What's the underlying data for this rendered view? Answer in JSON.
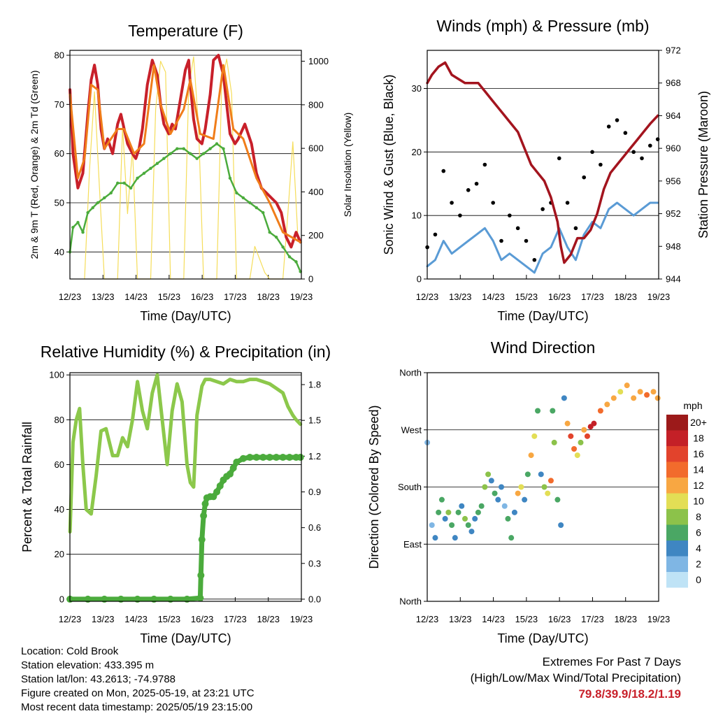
{
  "colors": {
    "temp2m": "#c8202a",
    "temp9m": "#f07d1a",
    "dewpoint": "#4bab3c",
    "solar": "#f5dd5a",
    "gust": "#000000",
    "wind": "#5a9bd5",
    "pressure": "#a3141e",
    "rh": "#8cc84b",
    "precip": "#4bab3c",
    "extremes": "#c8202a"
  },
  "chart_data": [
    {
      "id": "temperature",
      "type": "line",
      "title": "Temperature (F)",
      "xlabel": "Time (Day/UTC)",
      "ylabel": "2m & 9m T (Red, Orange) & 2m Td (Green)",
      "y2label": "Solar Insolation (Yellow)",
      "xticks": [
        "12/23",
        "13/23",
        "14/23",
        "15/23",
        "16/23",
        "17/23",
        "18/23",
        "19/23"
      ],
      "xlim": [
        12.958,
        19.958
      ],
      "ylim": [
        34.5,
        81
      ],
      "yticks": [
        40,
        50,
        60,
        70,
        80
      ],
      "y2lim": [
        0,
        1050
      ],
      "y2ticks": [
        0,
        200,
        400,
        600,
        800,
        1000
      ],
      "series": [
        {
          "key": "temp2m",
          "x": [
            12.96,
            13.05,
            13.2,
            13.35,
            13.5,
            13.6,
            13.7,
            13.8,
            13.9,
            14.0,
            14.1,
            14.25,
            14.4,
            14.5,
            14.6,
            14.7,
            14.85,
            14.95,
            15.05,
            15.15,
            15.3,
            15.45,
            15.6,
            15.7,
            15.8,
            15.95,
            16.05,
            16.15,
            16.3,
            16.45,
            16.55,
            16.6,
            16.7,
            16.8,
            16.95,
            17.05,
            17.2,
            17.3,
            17.45,
            17.6,
            17.7,
            17.8,
            17.95,
            18.05,
            18.25,
            18.45,
            18.6,
            18.75,
            18.9,
            19.05,
            19.2,
            19.35,
            19.5,
            19.65,
            19.8,
            19.93
          ],
          "y": [
            73,
            60,
            53,
            56,
            68,
            75,
            78,
            74,
            65,
            61,
            63,
            60,
            66,
            68,
            65,
            62,
            60,
            59,
            61,
            65,
            74,
            79,
            76,
            70,
            66,
            64,
            66,
            65,
            71,
            77,
            79,
            74,
            67,
            63,
            62,
            65,
            72,
            79,
            80,
            76,
            70,
            64,
            62,
            63,
            66,
            62,
            56,
            53,
            52,
            51,
            50,
            48,
            43,
            41,
            44,
            42
          ]
        },
        {
          "key": "temp9m",
          "x": [
            12.96,
            13.2,
            13.4,
            13.6,
            13.8,
            14.0,
            14.4,
            14.6,
            14.9,
            15.2,
            15.5,
            15.7,
            16.0,
            16.4,
            16.6,
            16.9,
            17.3,
            17.6,
            17.9,
            18.2,
            18.6,
            19.0,
            19.4,
            19.93
          ],
          "y": [
            72,
            55,
            59,
            74,
            73,
            61,
            65,
            65,
            60,
            62,
            78,
            70,
            64,
            69,
            75,
            64,
            63,
            78,
            65,
            63,
            55,
            50,
            44,
            42
          ]
        },
        {
          "key": "dewpoint",
          "x": [
            12.96,
            13.05,
            13.2,
            13.35,
            13.5,
            13.65,
            13.8,
            14.0,
            14.2,
            14.4,
            14.6,
            14.8,
            15.0,
            15.2,
            15.4,
            15.6,
            15.8,
            16.0,
            16.2,
            16.4,
            16.6,
            16.8,
            17.0,
            17.2,
            17.4,
            17.6,
            17.8,
            18.0,
            18.2,
            18.4,
            18.6,
            18.8,
            19.0,
            19.2,
            19.4,
            19.6,
            19.8,
            19.93
          ],
          "y": [
            40,
            45,
            46,
            44,
            48,
            49,
            50,
            51,
            52,
            54,
            54,
            53,
            55,
            56,
            57,
            58,
            59,
            60,
            61,
            61,
            60,
            59,
            60,
            61,
            62,
            61,
            55,
            52,
            51,
            50,
            49,
            48,
            44,
            43,
            41,
            39,
            38,
            36
          ]
        }
      ],
      "y2_series": [
        {
          "key": "solar",
          "x": [
            13.4,
            13.55,
            13.7,
            13.85,
            14.0,
            14.4,
            14.55,
            14.7,
            14.85,
            15.0,
            15.4,
            15.55,
            15.7,
            15.85,
            16.0,
            16.4,
            16.55,
            16.7,
            16.85,
            17.0,
            17.4,
            17.55,
            17.7,
            17.85,
            18.0,
            18.4,
            18.55,
            18.7,
            18.85,
            19.0,
            19.4,
            19.55,
            19.7,
            19.85
          ],
          "y": [
            0,
            500,
            860,
            420,
            0,
            0,
            700,
            300,
            600,
            0,
            0,
            780,
            1000,
            950,
            0,
            0,
            880,
            1020,
            700,
            0,
            0,
            900,
            1010,
            850,
            0,
            0,
            150,
            90,
            30,
            0,
            0,
            300,
            630,
            200
          ]
        }
      ]
    },
    {
      "id": "winds",
      "type": "scatter",
      "title": "Winds (mph) & Pressure (mb)",
      "xlabel": "Time (Day/UTC)",
      "ylabel": "Sonic Wind & Gust (Blue, Black)",
      "y2label": "Station Pressure (Maroon)",
      "xticks": [
        "12/23",
        "13/23",
        "14/23",
        "15/23",
        "16/23",
        "17/23",
        "18/23",
        "19/23"
      ],
      "xlim": [
        12.958,
        19.958
      ],
      "ylim": [
        0,
        36
      ],
      "yticks": [
        0,
        10,
        20,
        30
      ],
      "y2lim": [
        944,
        972
      ],
      "y2ticks": [
        944,
        948,
        952,
        956,
        960,
        964,
        968,
        972
      ],
      "series": [
        {
          "key": "gust",
          "x": [
            12.96,
            13.2,
            13.45,
            13.7,
            13.95,
            14.2,
            14.45,
            14.7,
            14.95,
            15.2,
            15.45,
            15.7,
            15.95,
            16.2,
            16.45,
            16.7,
            16.95,
            17.2,
            17.45,
            17.7,
            17.95,
            18.2,
            18.45,
            18.7,
            18.95,
            19.2,
            19.45,
            19.7,
            19.93
          ],
          "y": [
            5,
            7,
            17,
            12,
            10,
            14,
            15,
            18,
            12,
            6,
            10,
            8,
            6,
            3,
            11,
            12,
            19,
            12,
            8,
            16,
            20,
            18,
            24,
            25,
            23,
            20,
            19,
            21,
            22
          ]
        },
        {
          "key": "wind",
          "x": [
            12.96,
            13.2,
            13.45,
            13.7,
            13.95,
            14.2,
            14.45,
            14.7,
            14.95,
            15.2,
            15.45,
            15.7,
            15.95,
            16.2,
            16.45,
            16.7,
            16.95,
            17.2,
            17.45,
            17.7,
            17.95,
            18.2,
            18.45,
            18.7,
            18.95,
            19.2,
            19.45,
            19.7,
            19.93
          ],
          "y": [
            2,
            3,
            6,
            4,
            5,
            6,
            7,
            8,
            6,
            3,
            4,
            3,
            2,
            1,
            4,
            5,
            8,
            5,
            3,
            7,
            9,
            8,
            11,
            12,
            11,
            10,
            11,
            12,
            12
          ]
        }
      ],
      "y2_series": [
        {
          "key": "pressure",
          "x": [
            12.96,
            13.1,
            13.3,
            13.5,
            13.7,
            13.9,
            14.1,
            14.3,
            14.5,
            14.7,
            14.9,
            15.1,
            15.3,
            15.5,
            15.7,
            15.9,
            16.1,
            16.3,
            16.5,
            16.7,
            16.9,
            17.0,
            17.1,
            17.3,
            17.5,
            17.7,
            17.9,
            18.1,
            18.3,
            18.5,
            18.7,
            18.9,
            19.1,
            19.3,
            19.5,
            19.7,
            19.93
          ],
          "y": [
            968,
            969,
            970,
            970.5,
            969,
            968.5,
            968,
            968,
            968,
            967,
            966,
            965,
            964,
            963,
            962,
            960,
            958,
            957,
            956,
            954,
            951,
            948,
            946,
            947,
            949,
            949,
            950,
            952,
            955,
            957,
            958,
            959,
            960,
            961,
            962,
            963,
            964
          ]
        }
      ]
    },
    {
      "id": "humidity",
      "type": "line",
      "title": "Relative Humidity (%) & Precipitation (in)",
      "xlabel": "Time (Day/UTC)",
      "ylabel": "Percent & Total Rainfall",
      "xticks": [
        "12/23",
        "13/23",
        "14/23",
        "15/23",
        "16/23",
        "17/23",
        "18/23",
        "19/23"
      ],
      "xlim": [
        12.958,
        19.958
      ],
      "ylim": [
        -1,
        101
      ],
      "yticks": [
        0,
        20,
        40,
        60,
        80,
        100
      ],
      "y2lim": [
        -0.018,
        1.9
      ],
      "y2ticks": [
        "0.0",
        "0.3",
        "0.6",
        "0.9",
        "1.2",
        "1.5",
        "1.8"
      ],
      "series": [
        {
          "key": "rh",
          "x": [
            12.96,
            13.05,
            13.15,
            13.25,
            13.35,
            13.45,
            13.6,
            13.75,
            13.9,
            14.05,
            14.25,
            14.4,
            14.55,
            14.7,
            14.85,
            15.0,
            15.15,
            15.3,
            15.45,
            15.6,
            15.75,
            15.9,
            16.05,
            16.2,
            16.35,
            16.5,
            16.6,
            16.7,
            16.8,
            16.95,
            17.05,
            17.2,
            17.4,
            17.6,
            17.8,
            18.0,
            18.2,
            18.4,
            18.6,
            18.8,
            19.0,
            19.2,
            19.4,
            19.55,
            19.7,
            19.8,
            19.93
          ],
          "y": [
            30,
            70,
            80,
            85,
            60,
            40,
            38,
            55,
            75,
            76,
            64,
            64,
            72,
            68,
            80,
            97,
            84,
            76,
            92,
            100,
            80,
            60,
            84,
            96,
            88,
            60,
            52,
            50,
            82,
            95,
            98,
            98,
            97,
            96,
            98,
            97,
            97,
            98,
            98,
            97,
            96,
            94,
            92,
            86,
            82,
            80,
            78
          ]
        }
      ],
      "y2_series": [
        {
          "key": "precip",
          "x": [
            12.96,
            13.5,
            14.0,
            14.5,
            15.0,
            15.5,
            16.0,
            16.5,
            16.9,
            16.92,
            16.95,
            17.0,
            17.05,
            17.1,
            17.2,
            17.3,
            17.4,
            17.5,
            17.6,
            17.7,
            17.8,
            17.9,
            18.0,
            18.2,
            18.4,
            18.6,
            18.8,
            19.0,
            19.2,
            19.4,
            19.6,
            19.8,
            19.93
          ],
          "y": [
            0,
            0,
            0,
            0,
            0,
            0,
            0,
            0,
            0.01,
            0.2,
            0.5,
            0.7,
            0.8,
            0.85,
            0.86,
            0.86,
            0.9,
            0.95,
            1.0,
            1.03,
            1.05,
            1.1,
            1.15,
            1.18,
            1.19,
            1.19,
            1.19,
            1.19,
            1.19,
            1.19,
            1.19,
            1.19,
            1.19
          ]
        }
      ]
    },
    {
      "id": "direction",
      "type": "scatter",
      "title": "Wind Direction",
      "xlabel": "Time (Day/UTC)",
      "ylabel": "Direction (Colored By Speed)",
      "xticks": [
        "12/23",
        "13/23",
        "14/23",
        "15/23",
        "16/23",
        "17/23",
        "18/23",
        "19/23"
      ],
      "xlim": [
        12.958,
        19.958
      ],
      "ylim": [
        0,
        360
      ],
      "yticks": [
        "North",
        "East",
        "South",
        "West",
        "North"
      ],
      "ytick_values": [
        0,
        90,
        180,
        270,
        360
      ],
      "series": [
        {
          "name": "direction",
          "x": [
            12.96,
            13.1,
            13.2,
            13.3,
            13.4,
            13.5,
            13.6,
            13.7,
            13.8,
            13.9,
            14.0,
            14.1,
            14.2,
            14.3,
            14.4,
            14.5,
            14.6,
            14.7,
            14.8,
            14.9,
            15.0,
            15.1,
            15.2,
            15.3,
            15.4,
            15.5,
            15.6,
            15.7,
            15.8,
            15.9,
            16.0,
            16.1,
            16.2,
            16.3,
            16.4,
            16.5,
            16.6,
            16.7,
            16.75,
            16.8,
            16.9,
            17.0,
            17.1,
            17.2,
            17.3,
            17.4,
            17.5,
            17.6,
            17.7,
            17.8,
            17.9,
            18.0,
            18.2,
            18.4,
            18.6,
            18.8,
            19.0,
            19.2,
            19.4,
            19.6,
            19.8,
            19.93
          ],
          "y": [
            250,
            120,
            100,
            140,
            160,
            130,
            140,
            120,
            100,
            140,
            150,
            130,
            120,
            110,
            130,
            140,
            150,
            180,
            200,
            190,
            170,
            160,
            180,
            150,
            130,
            100,
            140,
            170,
            180,
            160,
            200,
            230,
            260,
            300,
            200,
            180,
            170,
            190,
            300,
            250,
            160,
            120,
            320,
            280,
            260,
            240,
            230,
            250,
            270,
            260,
            275,
            280,
            300,
            310,
            320,
            330,
            340,
            320,
            330,
            325,
            330,
            320
          ],
          "speed": [
            2,
            1,
            3,
            5,
            6,
            4,
            8,
            5,
            3,
            6,
            4,
            7,
            5,
            3,
            4,
            6,
            5,
            8,
            7,
            4,
            5,
            3,
            4,
            2,
            5,
            6,
            4,
            11,
            10,
            3,
            5,
            12,
            9,
            6,
            4,
            8,
            10,
            13,
            5,
            7,
            6,
            4,
            3,
            12,
            16,
            14,
            10,
            8,
            12,
            16,
            17,
            18,
            14,
            12,
            11,
            10,
            12,
            11,
            12,
            13,
            12,
            11
          ]
        }
      ],
      "legend": {
        "title": "mph",
        "labels": [
          "20+",
          "18",
          "16",
          "14",
          "12",
          "10",
          "8",
          "6",
          "4",
          "2",
          "0"
        ],
        "colors": [
          "#9c1a1a",
          "#c42027",
          "#e2432c",
          "#f26b2c",
          "#f8a742",
          "#e3de55",
          "#8cc24a",
          "#4aa764",
          "#3f86c2",
          "#7fb6e4",
          "#bfe3f6"
        ]
      }
    }
  ],
  "footer": {
    "location": "Location: Cold Brook",
    "elevation": "Station elevation: 433.395 m",
    "latlon": "Station lat/lon: 43.2613; -74.9788",
    "created": "Figure created on Mon, 2025-05-19, at 23:21 UTC",
    "recent": "Most recent data timestamp: 2025/05/19 23:15:00",
    "extremes_title": "Extremes For Past 7 Days",
    "extremes_sub": "(High/Low/Max Wind/Total Precipitation)",
    "extremes_value": "79.8/39.9/18.2/1.19"
  }
}
